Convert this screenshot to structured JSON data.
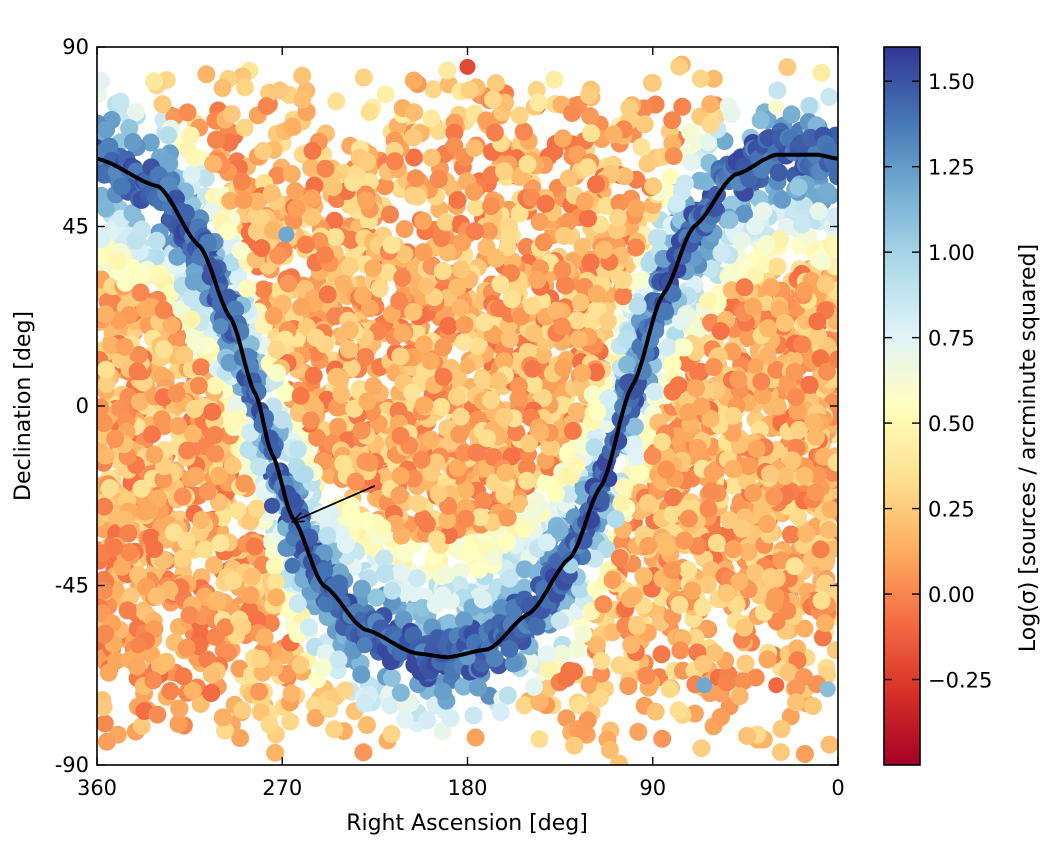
{
  "chart_data": {
    "type": "scatter",
    "title": "",
    "xlabel": "Right Ascension [deg]",
    "ylabel": "Declination [deg]",
    "xlim": [
      360,
      0
    ],
    "ylim": [
      -90,
      90
    ],
    "x_ticks": [
      360,
      270,
      180,
      90,
      0
    ],
    "y_ticks": [
      90,
      45,
      0,
      -45,
      -90
    ],
    "x_tick_labels": [
      "360",
      "270",
      "180",
      "90",
      "0"
    ],
    "y_tick_labels": [
      "90",
      "45",
      "0",
      "-45",
      "-90"
    ],
    "grid": false,
    "colorbar": {
      "label": "Log(σ) [sources / arcminute squared]",
      "range": [
        -0.5,
        1.6
      ],
      "ticks": [
        1.5,
        1.25,
        1.0,
        0.75,
        0.5,
        0.25,
        0.0,
        -0.25
      ],
      "tick_labels": [
        "1.50",
        "1.25",
        "1.00",
        "0.75",
        "0.50",
        "0.25",
        "0.00",
        "−0.25"
      ],
      "colormap": "RdYlBu",
      "colors": [
        "#a50026",
        "#d73027",
        "#f46d43",
        "#fdae61",
        "#fee090",
        "#ffffbf",
        "#e0f3f8",
        "#abd9e9",
        "#74add1",
        "#4575b4",
        "#313695"
      ]
    },
    "galactic_plane_curve": {
      "description": "Galactic plane",
      "color": "#000000",
      "points": [
        {
          "ra": 360,
          "dec": 62
        },
        {
          "ra": 330,
          "dec": 55
        },
        {
          "ra": 310,
          "dec": 40
        },
        {
          "ra": 295,
          "dec": 22
        },
        {
          "ra": 283,
          "dec": 3
        },
        {
          "ra": 275,
          "dec": -12
        },
        {
          "ra": 265,
          "dec": -28
        },
        {
          "ra": 250,
          "dec": -45
        },
        {
          "ra": 230,
          "dec": -56
        },
        {
          "ra": 205,
          "dec": -62
        },
        {
          "ra": 190,
          "dec": -63
        },
        {
          "ra": 170,
          "dec": -61
        },
        {
          "ra": 150,
          "dec": -52
        },
        {
          "ra": 130,
          "dec": -38
        },
        {
          "ra": 115,
          "dec": -20
        },
        {
          "ra": 100,
          "dec": 5
        },
        {
          "ra": 85,
          "dec": 28
        },
        {
          "ra": 70,
          "dec": 45
        },
        {
          "ra": 50,
          "dec": 58
        },
        {
          "ra": 30,
          "dec": 63
        },
        {
          "ra": 10,
          "dec": 63
        },
        {
          "ra": 0,
          "dec": 62
        }
      ]
    },
    "arrow": {
      "from": {
        "ra": 225,
        "dec": -20
      },
      "to": {
        "ra": 265,
        "dec": -29
      }
    },
    "density_points_sample": [
      {
        "ra": 275,
        "dec": -25,
        "value": 1.5
      },
      {
        "ra": 265,
        "dec": -40,
        "value": 1.4
      },
      {
        "ra": 230,
        "dec": -60,
        "value": 1.35
      },
      {
        "ra": 180,
        "dec": -63,
        "value": 1.25
      },
      {
        "ra": 130,
        "dec": -40,
        "value": 1.0
      },
      {
        "ra": 300,
        "dec": 20,
        "value": 1.3
      },
      {
        "ra": 268,
        "dec": 43,
        "value": 1.2
      },
      {
        "ra": 200,
        "dec": 30,
        "value": 0.2
      },
      {
        "ra": 180,
        "dec": 10,
        "value": 0.15
      },
      {
        "ra": 40,
        "dec": 10,
        "value": 0.1
      },
      {
        "ra": 340,
        "dec": -60,
        "value": 0.0
      },
      {
        "ra": 30,
        "dec": -70,
        "value": -0.1
      },
      {
        "ra": 65,
        "dec": -70,
        "value": 1.2
      },
      {
        "ra": 5,
        "dec": -71,
        "value": 1.1
      },
      {
        "ra": 180,
        "dec": 85,
        "value": -0.2
      },
      {
        "ra": 30,
        "dec": 75,
        "value": 0.6
      }
    ]
  }
}
